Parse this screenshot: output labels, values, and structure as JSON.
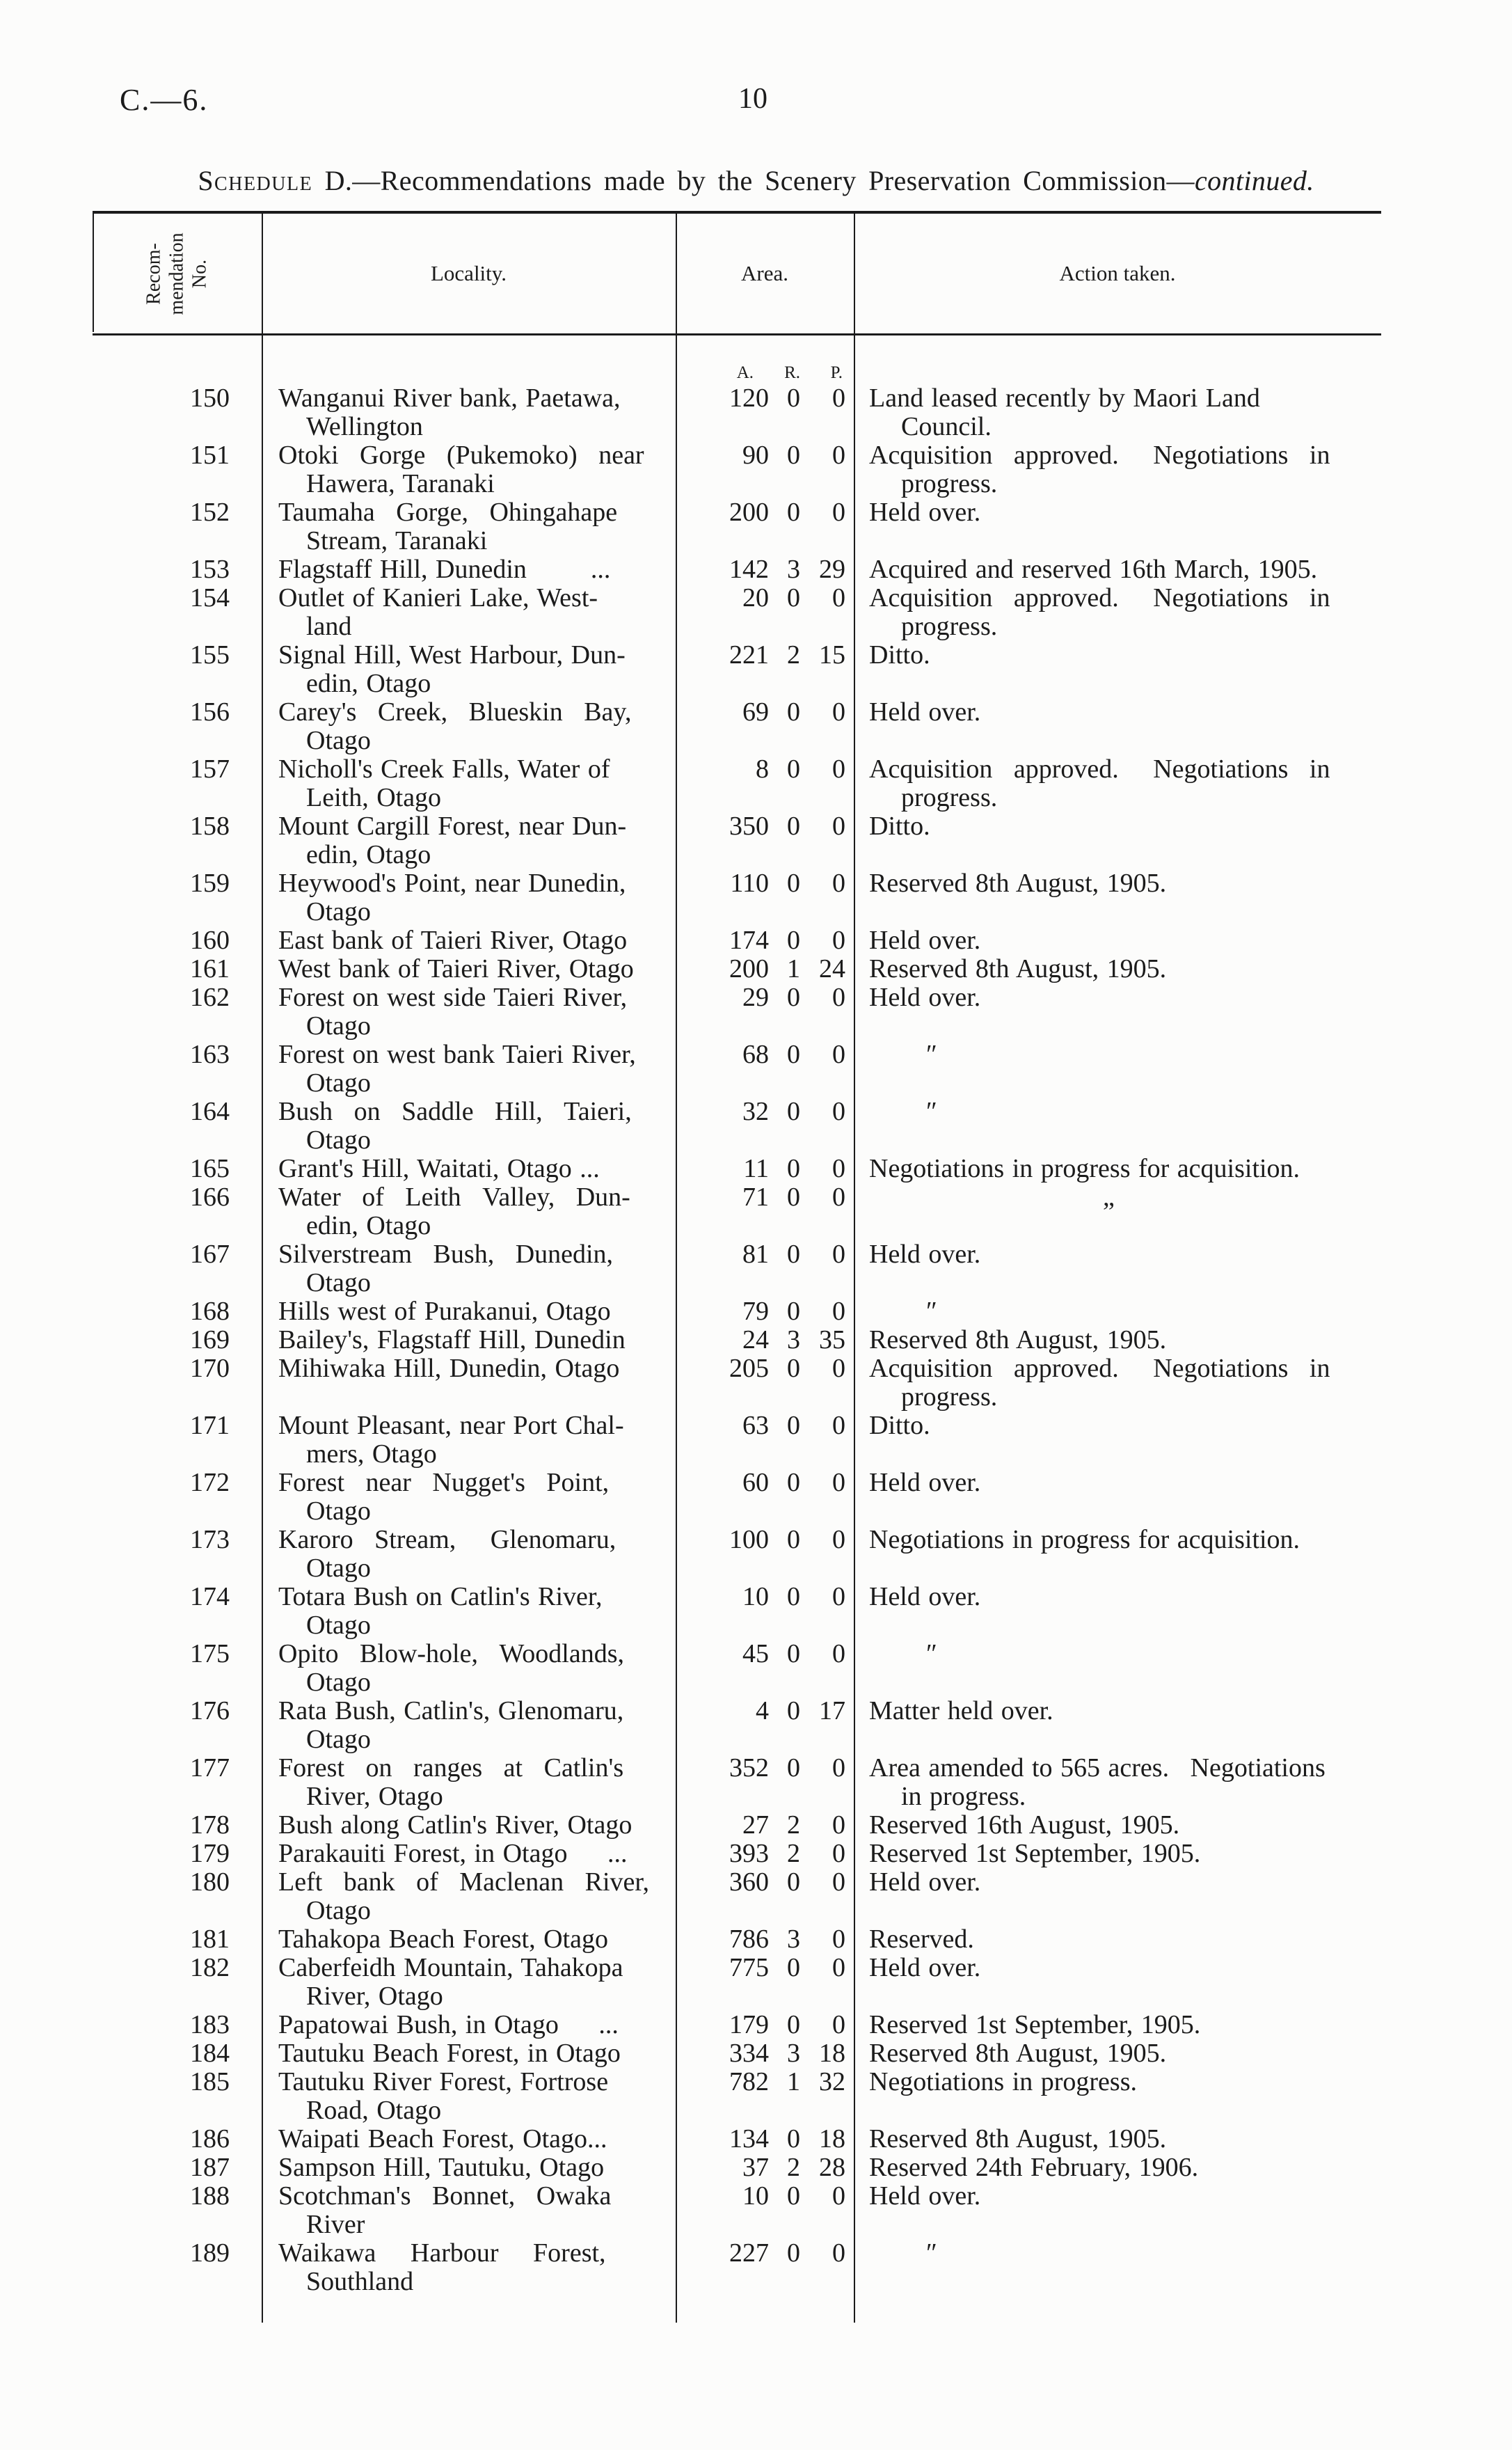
{
  "colors": {
    "ink": "#1b1b1b",
    "paper": "#fcfcfb"
  },
  "page": {
    "doc_ref": "C.—6.",
    "page_number": "10",
    "title": {
      "schedule": "Schedule",
      "rest": " D.—Recommendations made by the Scenery Preservation Commission—",
      "continued": "continued."
    }
  },
  "table": {
    "header": {
      "no_lines": [
        "Recom-",
        "mendation",
        "No."
      ],
      "locality": "Locality.",
      "area": "Area.",
      "action": "Action taken.",
      "area_units": {
        "a": "A.",
        "r": "R.",
        "p": "P."
      }
    },
    "rows": [
      {
        "no": "150",
        "locality": "Wanganui River bank, Paetawa,\nWellington",
        "a": "120",
        "r": "0",
        "p": "0",
        "action": "Land leased recently by Maori Land\nCouncil."
      },
      {
        "no": "151",
        "locality": "Otoki  Gorge  (Pukemoko)  near\nHawera, Taranaki",
        "a": "90",
        "r": "0",
        "p": "0",
        "action": "Acquisition  approved.   Negotiations  in\nprogress."
      },
      {
        "no": "152",
        "locality": "Taumaha  Gorge,  Ohingahape\nStream, Taranaki",
        "a": "200",
        "r": "0",
        "p": "0",
        "action": "Held over."
      },
      {
        "no": "153",
        "locality": "Flagstaff Hill, Dunedin        ...",
        "a": "142",
        "r": "3",
        "p": "29",
        "action": "Acquired and reserved 16th March, 1905."
      },
      {
        "no": "154",
        "locality": "Outlet of Kanieri Lake, West-\nland",
        "a": "20",
        "r": "0",
        "p": "0",
        "action": "Acquisition  approved.   Negotiations  in\nprogress."
      },
      {
        "no": "155",
        "locality": "Signal Hill, West Harbour, Dun-\nedin, Otago",
        "a": "221",
        "r": "2",
        "p": "15",
        "action": "Ditto."
      },
      {
        "no": "156",
        "locality": "Carey's  Creek,  Blueskin  Bay,\nOtago",
        "a": "69",
        "r": "0",
        "p": "0",
        "action": "Held over."
      },
      {
        "no": "157",
        "locality": "Nicholl's Creek Falls, Water of\nLeith, Otago",
        "a": "8",
        "r": "0",
        "p": "0",
        "action": "Acquisition  approved.   Negotiations  in\nprogress."
      },
      {
        "no": "158",
        "locality": "Mount Cargill Forest, near Dun-\nedin, Otago",
        "a": "350",
        "r": "0",
        "p": "0",
        "action": "Ditto."
      },
      {
        "no": "159",
        "locality": "Heywood's Point, near Dunedin,\nOtago",
        "a": "110",
        "r": "0",
        "p": "0",
        "action": "Reserved 8th August, 1905."
      },
      {
        "no": "160",
        "locality": "East bank of Taieri River, Otago",
        "a": "174",
        "r": "0",
        "p": "0",
        "action": "Held over."
      },
      {
        "no": "161",
        "locality": "West bank of Taieri River, Otago",
        "a": "200",
        "r": "1",
        "p": "24",
        "action": "Reserved 8th August, 1905."
      },
      {
        "no": "162",
        "locality": "Forest on west side Taieri River,\nOtago",
        "a": "29",
        "r": "0",
        "p": "0",
        "action": "Held over."
      },
      {
        "no": "163",
        "locality": "Forest on west bank Taieri River,\nOtago",
        "a": "68",
        "r": "0",
        "p": "0",
        "action": "″",
        "action_class": "ditto"
      },
      {
        "no": "164",
        "locality": "Bush  on  Saddle  Hill,  Taieri,\nOtago",
        "a": "32",
        "r": "0",
        "p": "0",
        "action": "″",
        "action_class": "ditto"
      },
      {
        "no": "165",
        "locality": "Grant's Hill, Waitati, Otago ...",
        "a": "11",
        "r": "0",
        "p": "0",
        "action": "Negotiations in progress for acquisition."
      },
      {
        "no": "166",
        "locality": "Water  of  Leith  Valley,  Dun-\nedin, Otago",
        "a": "71",
        "r": "0",
        "p": "0",
        "action": "„",
        "action_class": "ditto-deep"
      },
      {
        "no": "167",
        "locality": "Silverstream  Bush,  Dunedin,\nOtago",
        "a": "81",
        "r": "0",
        "p": "0",
        "action": "Held over."
      },
      {
        "no": "168",
        "locality": "Hills west of Purakanui, Otago",
        "a": "79",
        "r": "0",
        "p": "0",
        "action": "″",
        "action_class": "ditto"
      },
      {
        "no": "169",
        "locality": "Bailey's, Flagstaff Hill, Dunedin",
        "a": "24",
        "r": "3",
        "p": "35",
        "action": "Reserved 8th August, 1905."
      },
      {
        "no": "170",
        "locality": "Mihiwaka Hill, Dunedin, Otago",
        "a": "205",
        "r": "0",
        "p": "0",
        "action": "Acquisition  approved.   Negotiations  in\nprogress."
      },
      {
        "no": "171",
        "locality": "Mount Pleasant, near Port Chal-\nmers, Otago",
        "a": "63",
        "r": "0",
        "p": "0",
        "action": "Ditto."
      },
      {
        "no": "172",
        "locality": "Forest  near  Nugget's  Point,\nOtago",
        "a": "60",
        "r": "0",
        "p": "0",
        "action": "Held over."
      },
      {
        "no": "173",
        "locality": "Karoro  Stream,   Glenomaru,\nOtago",
        "a": "100",
        "r": "0",
        "p": "0",
        "action": "Negotiations in progress for acquisition."
      },
      {
        "no": "174",
        "locality": "Totara Bush on Catlin's River,\nOtago",
        "a": "10",
        "r": "0",
        "p": "0",
        "action": "Held over."
      },
      {
        "no": "175",
        "locality": "Opito  Blow-hole,  Woodlands,\nOtago",
        "a": "45",
        "r": "0",
        "p": "0",
        "action": "″",
        "action_class": "ditto"
      },
      {
        "no": "176",
        "locality": "Rata Bush, Catlin's, Glenomaru,\nOtago",
        "a": "4",
        "r": "0",
        "p": "17",
        "action": "Matter held over."
      },
      {
        "no": "177",
        "locality": "Forest  on  ranges  at  Catlin's\nRiver, Otago",
        "a": "352",
        "r": "0",
        "p": "0",
        "action": "Area amended to 565 acres.  Negotiations\nin progress."
      },
      {
        "no": "178",
        "locality": "Bush along Catlin's River, Otago",
        "a": "27",
        "r": "2",
        "p": "0",
        "action": "Reserved 16th August, 1905."
      },
      {
        "no": "179",
        "locality": "Parakauiti Forest, in Otago     ...",
        "a": "393",
        "r": "2",
        "p": "0",
        "action": "Reserved 1st September, 1905."
      },
      {
        "no": "180",
        "locality": "Left  bank  of  Maclenan  River,\nOtago",
        "a": "360",
        "r": "0",
        "p": "0",
        "action": "Held over."
      },
      {
        "no": "181",
        "locality": "Tahakopa Beach Forest, Otago",
        "a": "786",
        "r": "3",
        "p": "0",
        "action": "Reserved."
      },
      {
        "no": "182",
        "locality": "Caberfeidh Mountain, Tahakopa\nRiver, Otago",
        "a": "775",
        "r": "0",
        "p": "0",
        "action": "Held over."
      },
      {
        "no": "183",
        "locality": "Papatowai Bush, in Otago     ...",
        "a": "179",
        "r": "0",
        "p": "0",
        "action": "Reserved 1st September, 1905."
      },
      {
        "no": "184",
        "locality": "Tautuku Beach Forest, in Otago",
        "a": "334",
        "r": "3",
        "p": "18",
        "action": "Reserved 8th August, 1905."
      },
      {
        "no": "185",
        "locality": "Tautuku River Forest, Fortrose\nRoad, Otago",
        "a": "782",
        "r": "1",
        "p": "32",
        "action": "Negotiations in progress."
      },
      {
        "no": "186",
        "locality": "Waipati Beach Forest, Otago...",
        "a": "134",
        "r": "0",
        "p": "18",
        "action": "Reserved 8th August, 1905."
      },
      {
        "no": "187",
        "locality": "Sampson Hill, Tautuku, Otago",
        "a": "37",
        "r": "2",
        "p": "28",
        "action": "Reserved 24th February, 1906."
      },
      {
        "no": "188",
        "locality": "Scotchman's  Bonnet,  Owaka\nRiver",
        "a": "10",
        "r": "0",
        "p": "0",
        "action": "Held over."
      },
      {
        "no": "189",
        "locality": "Waikawa   Harbour   Forest,\nSouthland",
        "a": "227",
        "r": "0",
        "p": "0",
        "action": "″",
        "action_class": "ditto"
      }
    ]
  }
}
